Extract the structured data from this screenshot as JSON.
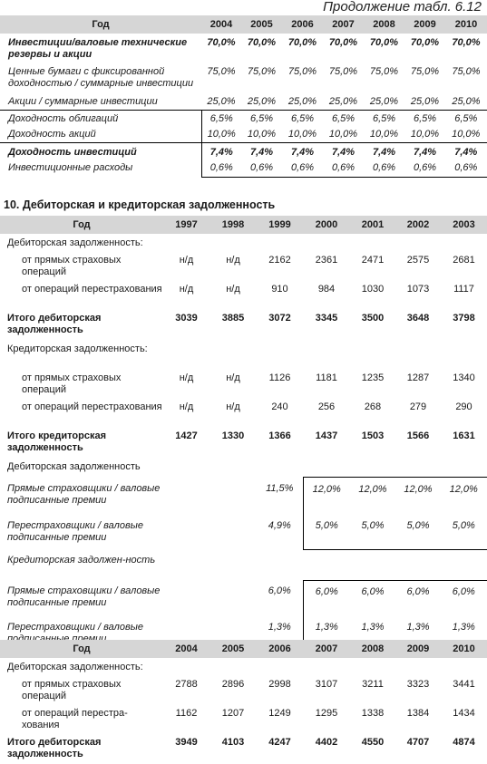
{
  "continuation": "Продолжение табл. 6.12",
  "table1": {
    "year_header": "Год",
    "years": [
      "2004",
      "2005",
      "2006",
      "2007",
      "2008",
      "2009",
      "2010"
    ],
    "rows": [
      {
        "label": "Инвестиции/валовые технические резервы и акции",
        "values": [
          "70,0%",
          "70,0%",
          "70,0%",
          "70,0%",
          "70,0%",
          "70,0%",
          "70,0%"
        ]
      },
      {
        "label": "Ценные бумаги с фиксированной доходностью / суммарные инвестиции",
        "values": [
          "75,0%",
          "75,0%",
          "75,0%",
          "75,0%",
          "75,0%",
          "75,0%",
          "75,0%"
        ]
      },
      {
        "label": "Акции / суммарные инвестиции",
        "values": [
          "25,0%",
          "25,0%",
          "25,0%",
          "25,0%",
          "25,0%",
          "25,0%",
          "25,0%"
        ]
      },
      {
        "label": "Доходность облигаций",
        "values": [
          "6,5%",
          "6,5%",
          "6,5%",
          "6,5%",
          "6,5%",
          "6,5%",
          "6,5%"
        ]
      },
      {
        "label": "Доходность акций",
        "values": [
          "10,0%",
          "10,0%",
          "10,0%",
          "10,0%",
          "10,0%",
          "10,0%",
          "10,0%"
        ]
      },
      {
        "label": "Доходность инвестиций",
        "values": [
          "7,4%",
          "7,4%",
          "7,4%",
          "7,4%",
          "7,4%",
          "7,4%",
          "7,4%"
        ]
      },
      {
        "label": "Инвестиционные расходы",
        "values": [
          "0,6%",
          "0,6%",
          "0,6%",
          "0,6%",
          "0,6%",
          "0,6%",
          "0,6%"
        ]
      }
    ]
  },
  "section_title": "10. Дебиторская и кредиторская задолженность",
  "table2": {
    "year_header": "Год",
    "years": [
      "1997",
      "1998",
      "1999",
      "2000",
      "2001",
      "2002",
      "2003"
    ],
    "rows": [
      {
        "label": "Дебиторская задолженность:",
        "values": [
          "",
          "",
          "",
          "",
          "",
          "",
          ""
        ]
      },
      {
        "label": "от прямых страховых операций",
        "values": [
          "н/д",
          "н/д",
          "2162",
          "2361",
          "2471",
          "2575",
          "2681"
        ]
      },
      {
        "label": "от операций перестрахования",
        "values": [
          "н/д",
          "н/д",
          "910",
          "984",
          "1030",
          "1073",
          "1117"
        ]
      },
      {
        "label": "Итого дебиторская задолженность",
        "values": [
          "3039",
          "3885",
          "3072",
          "3345",
          "3500",
          "3648",
          "3798"
        ]
      },
      {
        "label": "Кредиторская задолженность:",
        "values": [
          "",
          "",
          "",
          "",
          "",
          "",
          ""
        ]
      },
      {
        "label": "от прямых страховых операций",
        "values": [
          "н/д",
          "н/д",
          "1126",
          "1181",
          "1235",
          "1287",
          "1340"
        ]
      },
      {
        "label": "от операций перестрахования",
        "values": [
          "н/д",
          "н/д",
          "240",
          "256",
          "268",
          "279",
          "290"
        ]
      },
      {
        "label": "Итого кредиторская задолженность",
        "values": [
          "1427",
          "1330",
          "1366",
          "1437",
          "1503",
          "1566",
          "1631"
        ]
      },
      {
        "label": "Дебиторская задолженность",
        "values": [
          "",
          "",
          "",
          "",
          "",
          "",
          ""
        ]
      },
      {
        "label": "Прямые страховщики / валовые подписанные премии",
        "values": [
          "",
          "",
          "11,5%",
          "12,0%",
          "12,0%",
          "12,0%",
          "12,0%"
        ]
      },
      {
        "label": "Перестраховщики / валовые подписанные премии",
        "values": [
          "",
          "",
          "4,9%",
          "5,0%",
          "5,0%",
          "5,0%",
          "5,0%"
        ]
      },
      {
        "label": "Кредиторская задолжен-ность",
        "values": [
          "",
          "",
          "",
          "",
          "",
          "",
          ""
        ]
      },
      {
        "label": "Прямые страховщики / валовые подписанные премии",
        "values": [
          "",
          "",
          "6,0%",
          "6,0%",
          "6,0%",
          "6,0%",
          "6,0%"
        ]
      },
      {
        "label": "Перестраховщики / валовые подписанные премии",
        "values": [
          "",
          "",
          "1,3%",
          "1,3%",
          "1,3%",
          "1,3%",
          "1,3%"
        ]
      }
    ]
  },
  "table3": {
    "year_header": "Год",
    "years": [
      "2004",
      "2005",
      "2006",
      "2007",
      "2008",
      "2009",
      "2010"
    ],
    "rows": [
      {
        "label": "Дебиторская задолженность:",
        "values": [
          "",
          "",
          "",
          "",
          "",
          "",
          ""
        ]
      },
      {
        "label": "от прямых страховых операций",
        "values": [
          "2788",
          "2896",
          "2998",
          "3107",
          "3211",
          "3323",
          "3441"
        ]
      },
      {
        "label": "от операций перестра-хования",
        "values": [
          "1162",
          "1207",
          "1249",
          "1295",
          "1338",
          "1384",
          "1434"
        ]
      },
      {
        "label": "Итого дебиторская задолженность",
        "values": [
          "3949",
          "4103",
          "4247",
          "4402",
          "4550",
          "4707",
          "4874"
        ]
      }
    ]
  }
}
